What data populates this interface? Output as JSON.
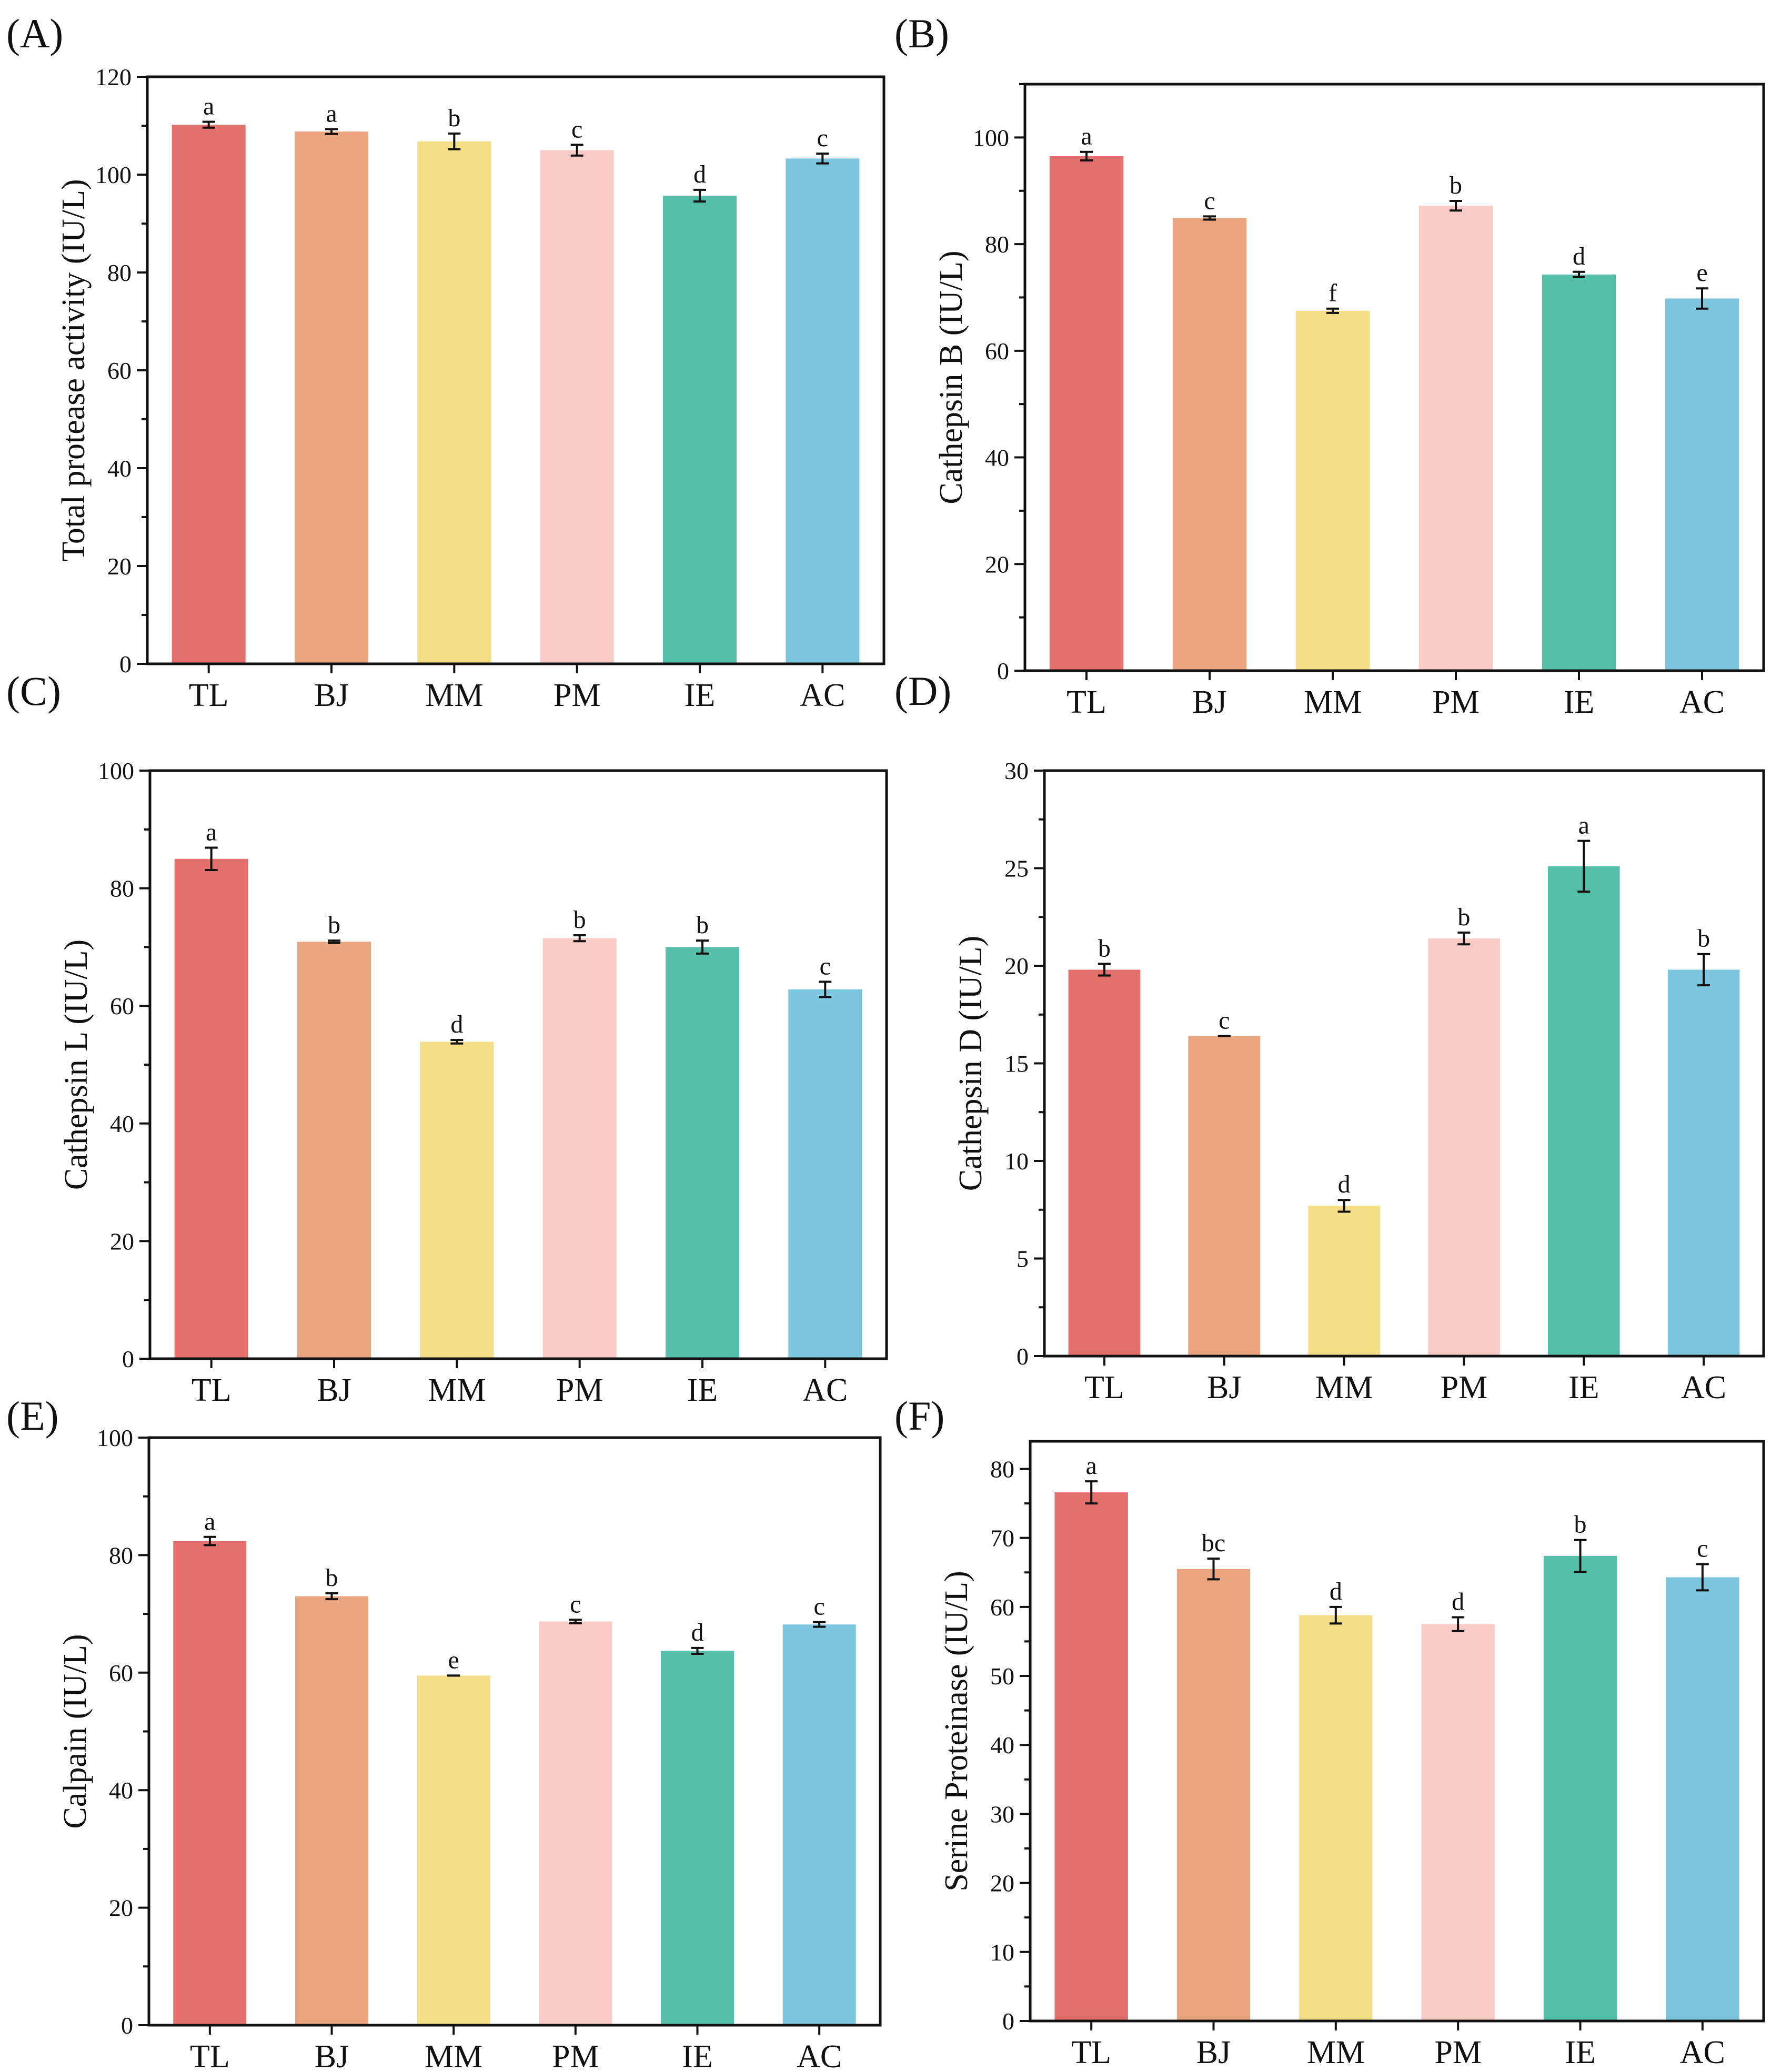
{
  "figure": {
    "categories": [
      "TL",
      "BJ",
      "MM",
      "PM",
      "IE",
      "AC"
    ],
    "colors": {
      "TL": "#e3706c",
      "BJ": "#eba57e",
      "MM": "#f5de88",
      "PM": "#fbcbc8",
      "IE": "#55bfaa",
      "AC": "#7cc6e0",
      "axis": "#111111"
    }
  },
  "chart_data": [
    {
      "panel": "(A)",
      "type": "bar",
      "categories": [
        "TL",
        "BJ",
        "MM",
        "PM",
        "IE",
        "AC"
      ],
      "values": [
        110.2,
        108.8,
        106.8,
        105.0,
        95.7,
        103.3
      ],
      "errors": [
        0.6,
        0.5,
        1.6,
        1.1,
        1.2,
        1.0
      ],
      "letters": [
        "a",
        "a",
        "b",
        "c",
        "d",
        "c"
      ],
      "ylabel": "Total protease activity (IU/L)",
      "ylim": [
        0,
        120
      ],
      "yticks": [
        0,
        20,
        40,
        60,
        80,
        100,
        120
      ],
      "minor_step": 10
    },
    {
      "panel": "(B)",
      "type": "bar",
      "categories": [
        "TL",
        "BJ",
        "MM",
        "PM",
        "IE",
        "AC"
      ],
      "values": [
        96.5,
        84.9,
        67.5,
        87.2,
        74.3,
        69.8
      ],
      "errors": [
        0.8,
        0.3,
        0.4,
        0.9,
        0.5,
        1.9
      ],
      "letters": [
        "a",
        "c",
        "f",
        "b",
        "d",
        "e"
      ],
      "ylabel": "Cathepsin B (IU/L)",
      "ylim": [
        0,
        110
      ],
      "yticks": [
        0,
        20,
        40,
        60,
        80,
        100
      ],
      "minor_step": 10
    },
    {
      "panel": "(C)",
      "type": "bar",
      "categories": [
        "TL",
        "BJ",
        "MM",
        "PM",
        "IE",
        "AC"
      ],
      "values": [
        85.0,
        70.9,
        53.9,
        71.5,
        70.0,
        62.8
      ],
      "errors": [
        1.9,
        0.2,
        0.3,
        0.5,
        1.1,
        1.3
      ],
      "letters": [
        "a",
        "b",
        "d",
        "b",
        "b",
        "c"
      ],
      "ylabel": "Cathepsin L (IU/L)",
      "ylim": [
        0,
        100
      ],
      "yticks": [
        0,
        20,
        40,
        60,
        80,
        100
      ],
      "minor_step": 10
    },
    {
      "panel": "(D)",
      "type": "bar",
      "categories": [
        "TL",
        "BJ",
        "MM",
        "PM",
        "IE",
        "AC"
      ],
      "values": [
        19.8,
        16.4,
        7.7,
        21.4,
        25.1,
        19.8
      ],
      "errors": [
        0.3,
        0.0,
        0.3,
        0.3,
        1.3,
        0.8
      ],
      "letters": [
        "b",
        "c",
        "d",
        "b",
        "a",
        "b"
      ],
      "ylabel": "Cathepsin D (IU/L)",
      "ylim": [
        0,
        30
      ],
      "yticks": [
        0,
        5,
        10,
        15,
        20,
        25,
        30
      ],
      "minor_step": 2.5
    },
    {
      "panel": "(E)",
      "type": "bar",
      "categories": [
        "TL",
        "BJ",
        "MM",
        "PM",
        "IE",
        "AC"
      ],
      "values": [
        82.4,
        73.0,
        59.5,
        68.7,
        63.7,
        68.2
      ],
      "errors": [
        0.7,
        0.5,
        0.0,
        0.3,
        0.5,
        0.4
      ],
      "letters": [
        "a",
        "b",
        "e",
        "c",
        "d",
        "c"
      ],
      "ylabel": "Calpain (IU/L)",
      "ylim": [
        0,
        100
      ],
      "yticks": [
        0,
        20,
        40,
        60,
        80,
        100
      ],
      "minor_step": 10
    },
    {
      "panel": "(F)",
      "type": "bar",
      "categories": [
        "TL",
        "BJ",
        "MM",
        "PM",
        "IE",
        "AC"
      ],
      "values": [
        76.6,
        65.5,
        58.8,
        57.5,
        67.4,
        64.3
      ],
      "errors": [
        1.6,
        1.5,
        1.2,
        1.0,
        2.3,
        1.9
      ],
      "letters": [
        "a",
        "bc",
        "d",
        "d",
        "b",
        "c"
      ],
      "ylabel": "Serine Proteinase (IU/L)",
      "ylim": [
        0,
        84
      ],
      "yticks": [
        0,
        10,
        20,
        30,
        40,
        50,
        60,
        70,
        80
      ],
      "minor_step": 5
    }
  ]
}
